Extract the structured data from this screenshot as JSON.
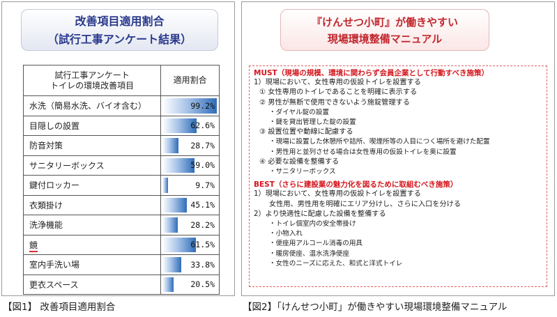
{
  "fig1": {
    "title_line1": "改善項目適用割合",
    "title_line2": "（試行工事アンケート結果）",
    "header_item_line1": "試行工事アンケート",
    "header_item_line2": "トイレの環境改善項目",
    "header_rate": "適用割合",
    "rows": [
      {
        "item": "水洗（簡易水洗、バイオ含む）",
        "rate": "99.2%",
        "value": 99.2
      },
      {
        "item": "目隠しの設置",
        "rate": "62.6%",
        "value": 62.6
      },
      {
        "item": "防音対策",
        "rate": "28.7%",
        "value": 28.7
      },
      {
        "item": "サニタリーボックス",
        "rate": "59.0%",
        "value": 59.0
      },
      {
        "item": "鍵付ロッカー",
        "rate": "9.7%",
        "value": 9.7
      },
      {
        "item": "衣類掛け",
        "rate": "45.1%",
        "value": 45.1
      },
      {
        "item": "洗浄機能",
        "rate": "28.2%",
        "value": 28.2
      },
      {
        "item": "鏡",
        "rate": "61.5%",
        "value": 61.5
      },
      {
        "item": "室内手洗い場",
        "rate": "33.8%",
        "value": 33.8
      },
      {
        "item": "更衣スペース",
        "rate": "20.5%",
        "value": 20.5
      }
    ],
    "caption": "【図1】 改善項目適用割合"
  },
  "fig2": {
    "title_line1": "『けんせつ小町』が働きやすい",
    "title_line2": "現場環境整備マニュアル",
    "lines": [
      {
        "cls": "hd",
        "text": "MUST（現場の規模、環境に関わらず会員企業として行動すべき施策）"
      },
      {
        "cls": "l1",
        "text": "1）現場において、女性専用の仮設トイレを設置する"
      },
      {
        "cls": "l2",
        "text": "① 女性専用のトイレであることを明確に表示する"
      },
      {
        "cls": "l2",
        "text": "② 男性が無断で使用できないよう施錠管理する"
      },
      {
        "cls": "l3",
        "text": "・ダイヤル錠の設置"
      },
      {
        "cls": "l3",
        "text": "・鍵を貸出管理した錠の設置"
      },
      {
        "cls": "l2",
        "text": "③ 設置位置や動線に配慮する"
      },
      {
        "cls": "l3",
        "text": "・現場に設置した休憩所や詰所、喫煙所等の人目につく場所を避けた配置"
      },
      {
        "cls": "l3",
        "text": "・男性用と並列させる場合は女性専用の仮設トイレを奥に設置"
      },
      {
        "cls": "l2",
        "text": "④ 必要な設備を整備する"
      },
      {
        "cls": "l3",
        "text": "・サニタリーボックス"
      },
      {
        "cls": "hd",
        "text": "BEST（さらに建設業の魅力化を図るために取組むべき施策）"
      },
      {
        "cls": "l1",
        "text": "1）現場において、女性専用の仮設トイレを設置する"
      },
      {
        "cls": "l4",
        "text": "女性用、男性用を明確にエリア分けし、さらに入口を分ける"
      },
      {
        "cls": "l1",
        "text": "2）より快適性に配慮した設備を整備する"
      },
      {
        "cls": "l3",
        "text": "・トイレ個室内の安全帯掛け"
      },
      {
        "cls": "l3",
        "text": "・小物入れ"
      },
      {
        "cls": "l3",
        "text": "・便座用アルコール消毒の用具"
      },
      {
        "cls": "l3",
        "text": "・暖房便座、温水洗浄便座"
      },
      {
        "cls": "l3",
        "text": "・女性のニーズに応えた、和式と洋式トイレ"
      }
    ],
    "caption": "【図2】「けんせつ小町」が働きやすい現場環境整備マニュアル"
  },
  "colors": {
    "fig1_title": "#2a3a8c",
    "fig2_title": "#c1272d",
    "bar_end": "#2f6db8",
    "must_best": "#d4161c"
  }
}
